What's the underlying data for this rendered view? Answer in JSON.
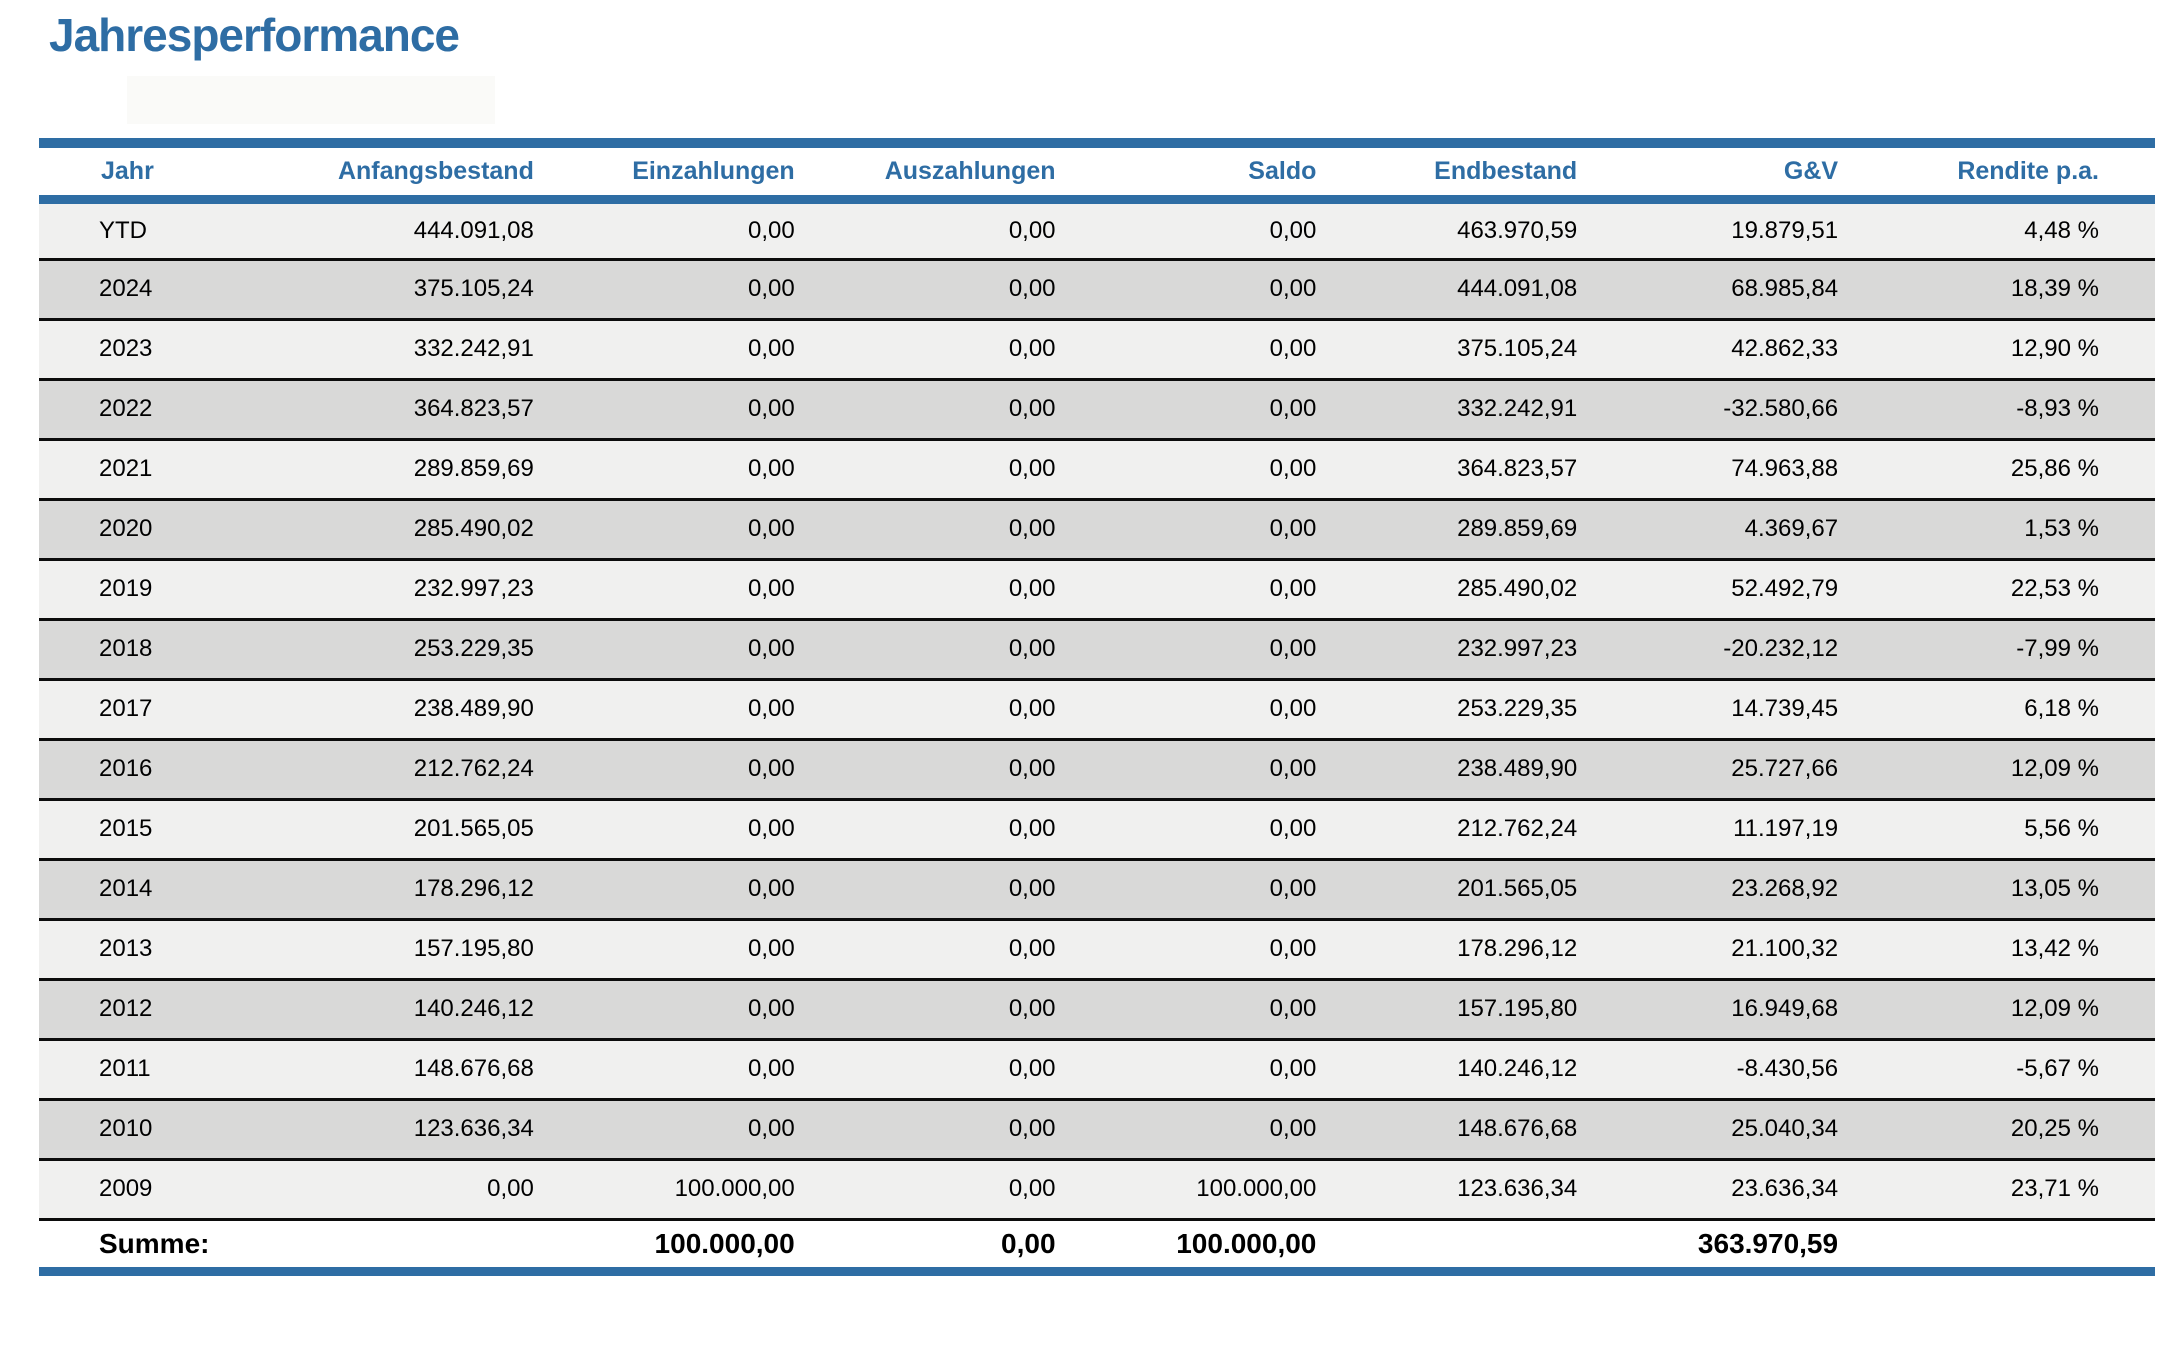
{
  "page": {
    "title": "Jahresperformance"
  },
  "colors": {
    "accent_blue": "#2e6da4",
    "row_light": "#f0f0ef",
    "row_dark": "#d9d9d8",
    "separator_black": "#0c0c0c",
    "text": "#000000",
    "background": "#ffffff"
  },
  "table": {
    "columns": [
      "Jahr",
      "Anfangsbestand",
      "Einzahlungen",
      "Auszahlungen",
      "Saldo",
      "Endbestand",
      "G&V",
      "Rendite p.a."
    ],
    "rows": [
      [
        "YTD",
        "444.091,08",
        "0,00",
        "0,00",
        "0,00",
        "463.970,59",
        "19.879,51",
        "4,48 %"
      ],
      [
        "2024",
        "375.105,24",
        "0,00",
        "0,00",
        "0,00",
        "444.091,08",
        "68.985,84",
        "18,39 %"
      ],
      [
        "2023",
        "332.242,91",
        "0,00",
        "0,00",
        "0,00",
        "375.105,24",
        "42.862,33",
        "12,90 %"
      ],
      [
        "2022",
        "364.823,57",
        "0,00",
        "0,00",
        "0,00",
        "332.242,91",
        "-32.580,66",
        "-8,93 %"
      ],
      [
        "2021",
        "289.859,69",
        "0,00",
        "0,00",
        "0,00",
        "364.823,57",
        "74.963,88",
        "25,86 %"
      ],
      [
        "2020",
        "285.490,02",
        "0,00",
        "0,00",
        "0,00",
        "289.859,69",
        "4.369,67",
        "1,53 %"
      ],
      [
        "2019",
        "232.997,23",
        "0,00",
        "0,00",
        "0,00",
        "285.490,02",
        "52.492,79",
        "22,53 %"
      ],
      [
        "2018",
        "253.229,35",
        "0,00",
        "0,00",
        "0,00",
        "232.997,23",
        "-20.232,12",
        "-7,99 %"
      ],
      [
        "2017",
        "238.489,90",
        "0,00",
        "0,00",
        "0,00",
        "253.229,35",
        "14.739,45",
        "6,18 %"
      ],
      [
        "2016",
        "212.762,24",
        "0,00",
        "0,00",
        "0,00",
        "238.489,90",
        "25.727,66",
        "12,09 %"
      ],
      [
        "2015",
        "201.565,05",
        "0,00",
        "0,00",
        "0,00",
        "212.762,24",
        "11.197,19",
        "5,56 %"
      ],
      [
        "2014",
        "178.296,12",
        "0,00",
        "0,00",
        "0,00",
        "201.565,05",
        "23.268,92",
        "13,05 %"
      ],
      [
        "2013",
        "157.195,80",
        "0,00",
        "0,00",
        "0,00",
        "178.296,12",
        "21.100,32",
        "13,42 %"
      ],
      [
        "2012",
        "140.246,12",
        "0,00",
        "0,00",
        "0,00",
        "157.195,80",
        "16.949,68",
        "12,09 %"
      ],
      [
        "2011",
        "148.676,68",
        "0,00",
        "0,00",
        "0,00",
        "140.246,12",
        "-8.430,56",
        "-5,67 %"
      ],
      [
        "2010",
        "123.636,34",
        "0,00",
        "0,00",
        "0,00",
        "148.676,68",
        "25.040,34",
        "20,25 %"
      ],
      [
        "2009",
        "0,00",
        "100.000,00",
        "0,00",
        "100.000,00",
        "123.636,34",
        "23.636,34",
        "23,71 %"
      ]
    ],
    "summary": {
      "label": "Summe:",
      "values": [
        "",
        "100.000,00",
        "0,00",
        "100.000,00",
        "",
        "363.970,59",
        ""
      ]
    }
  }
}
